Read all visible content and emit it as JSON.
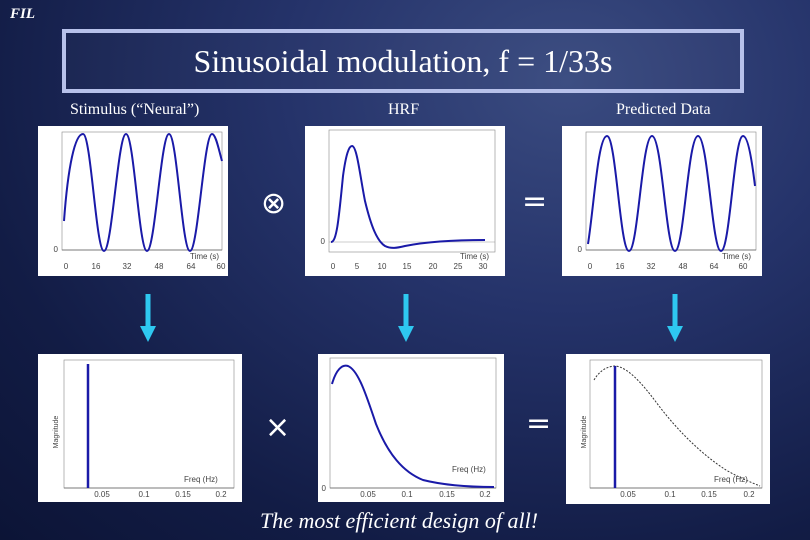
{
  "slide": {
    "logo": "FIL",
    "title": "Sinusoidal modulation, f = 1/33s",
    "caption": "The most efficient design of all!",
    "columns": {
      "stimulus": "Stimulus (“Neural”)",
      "hrf": "HRF",
      "predicted": "Predicted Data"
    },
    "operators": {
      "convolve": "⊗",
      "equals_top": "=",
      "multiply": "×",
      "equals_bottom": "="
    },
    "colors": {
      "curve": "#1a1aa8",
      "arrow": "#2ec8f0"
    }
  },
  "plots": {
    "stimulus_time": {
      "xlabel": "Time (s)",
      "ticks": [
        "0",
        "16",
        "32",
        "48",
        "64",
        "60"
      ],
      "ytick": "0"
    },
    "hrf_time": {
      "xlabel": "Time (s)",
      "ticks": [
        "0",
        "5",
        "10",
        "15",
        "20",
        "25",
        "30"
      ],
      "ytick": "0"
    },
    "predicted_time": {
      "xlabel": "Time (s)",
      "ticks": [
        "0",
        "16",
        "32",
        "48",
        "64",
        "60"
      ],
      "ytick": "0"
    },
    "stimulus_freq": {
      "xlabel": "Freq (Hz)",
      "ylabel": "Magnitude",
      "ticks": [
        "0.05",
        "0.1",
        "0.15",
        "0.2"
      ]
    },
    "hrf_freq": {
      "xlabel": "Freq (Hz)",
      "ticks": [
        "0.05",
        "0.1",
        "0.15",
        "0.2"
      ],
      "ytick": "0"
    },
    "predicted_freq": {
      "xlabel": "Freq (Hz)",
      "ylabel": "Magnitude",
      "ticks": [
        "0.05",
        "0.1",
        "0.15",
        "0.2"
      ]
    }
  }
}
